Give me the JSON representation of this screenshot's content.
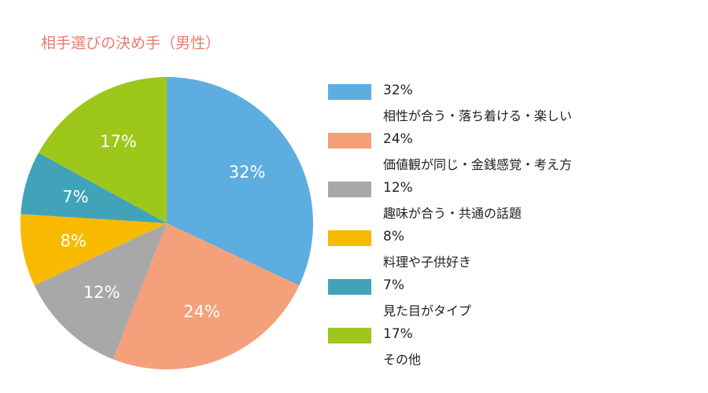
{
  "chart_data": {
    "type": "pie",
    "title": "相手選びの決め手（男性）",
    "slices": [
      {
        "label": "相性が合う・落ち着ける・楽しい",
        "value": 32,
        "display": "32%",
        "color": "#5DADE0"
      },
      {
        "label": "価値観が同じ・金銭感覚・考え方",
        "value": 24,
        "display": "24%",
        "color": "#F4A07B"
      },
      {
        "label": "趣味が合う・共通の話題",
        "value": 12,
        "display": "12%",
        "color": "#A7A8A7"
      },
      {
        "label": "料理や子供好き",
        "value": 8,
        "display": "8%",
        "color": "#F8BA00"
      },
      {
        "label": "見た目がタイプ",
        "value": 7,
        "display": "7%",
        "color": "#40A3B9"
      },
      {
        "label": "その他",
        "value": 17,
        "display": "17%",
        "color": "#9DC71A"
      }
    ],
    "start": "top",
    "direction": "clockwise",
    "legend": "right"
  }
}
